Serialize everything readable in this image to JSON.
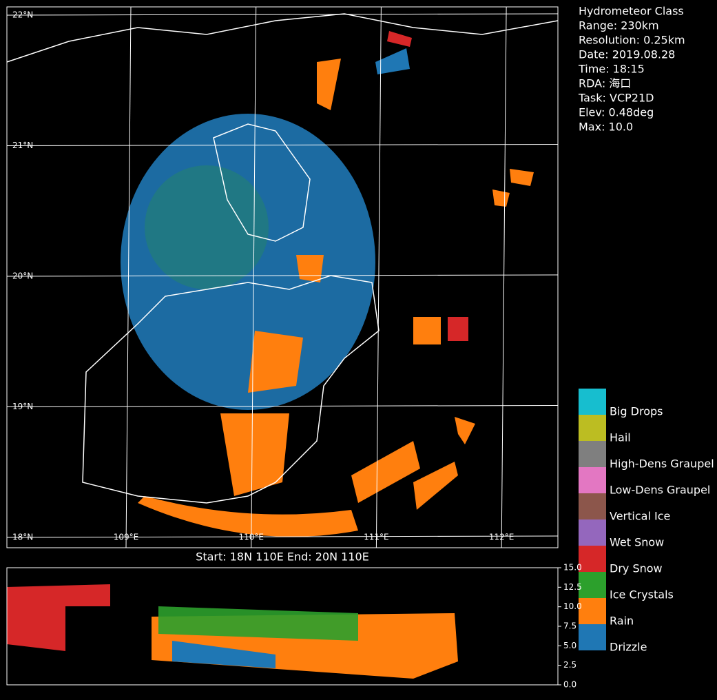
{
  "info": [
    "Hydrometeor Class",
    "Range: 230km",
    "Resolution: 0.25km",
    "Date: 2019.08.28",
    "Time: 18:15",
    "RDA: 海口",
    "Task: VCP21D",
    "Elev: 0.48deg",
    "Max: 10.0"
  ],
  "map": {
    "lat_labels": [
      {
        "value": 18,
        "label": "18°N"
      },
      {
        "value": 19,
        "label": "19°N"
      },
      {
        "value": 20,
        "label": "20°N"
      },
      {
        "value": 21,
        "label": "21°N"
      },
      {
        "value": 22,
        "label": "22°N"
      }
    ],
    "lon_labels": [
      {
        "value": 109,
        "label": "109°E"
      },
      {
        "value": 110,
        "label": "110°E"
      },
      {
        "value": 111,
        "label": "111°E"
      },
      {
        "value": 112,
        "label": "112°E"
      }
    ]
  },
  "legend": [
    {
      "label": "Drizzle",
      "color": "#1f77b4"
    },
    {
      "label": "Rain",
      "color": "#ff7f0e"
    },
    {
      "label": "Ice Crystals",
      "color": "#2ca02c"
    },
    {
      "label": "Dry Snow",
      "color": "#d62728"
    },
    {
      "label": "Wet Snow",
      "color": "#9467bd"
    },
    {
      "label": "Vertical Ice",
      "color": "#8c564b"
    },
    {
      "label": "Low-Dens Graupel",
      "color": "#e377c2"
    },
    {
      "label": "High-Dens Graupel",
      "color": "#7f7f7f"
    },
    {
      "label": "Hail",
      "color": "#bcbd22"
    },
    {
      "label": "Big Drops",
      "color": "#17becf"
    }
  ],
  "section": {
    "title": "Start: 18N 110E End: 20N 110E",
    "ylim": [
      0,
      15
    ],
    "yticks": [
      {
        "value": 0,
        "label": "0.0"
      },
      2.5,
      {
        "value": 5,
        "label": "5.0"
      },
      7.5,
      {
        "value": 10,
        "label": "10.0"
      },
      12.5,
      {
        "value": 15,
        "label": "15.0"
      }
    ]
  }
}
